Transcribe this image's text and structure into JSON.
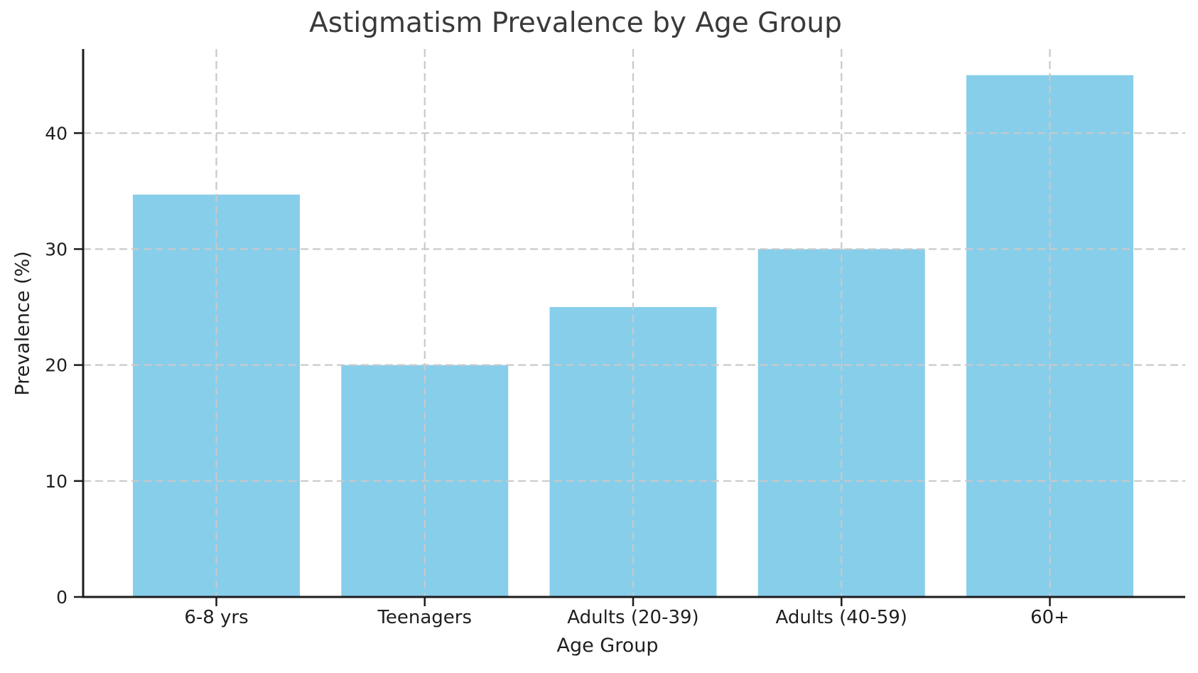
{
  "chart_data": {
    "type": "bar",
    "title": "Astigmatism Prevalence by Age Group",
    "xlabel": "Age Group",
    "ylabel": "Prevalence (%)",
    "categories": [
      "6-8 yrs",
      "Teenagers",
      "Adults (20-39)",
      "Adults (40-59)",
      "60+"
    ],
    "values": [
      34.7,
      20,
      25,
      30,
      45
    ],
    "yticks": [
      0,
      10,
      20,
      30,
      40
    ],
    "ylim": [
      0,
      47.25
    ],
    "grid": "both-dashed-over-bars",
    "legend_position": "none",
    "colors": {
      "bar_fill": "#87CEEB",
      "grid_line": "#c9c9c9",
      "spine": "#1c1c1e",
      "tick_label": "#1f1f1f",
      "title_text": "#3a3a3a"
    }
  }
}
